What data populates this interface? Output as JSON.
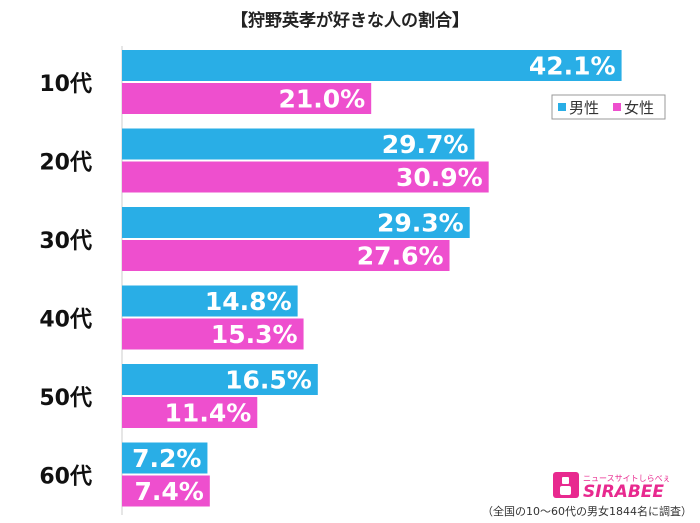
{
  "title": "【狩野英孝が好きな人の割合】",
  "footnote": "（全国の10〜60代の男女1844名に調査）",
  "logo": {
    "tagline": "ニュースサイトしらべぇ",
    "name": "SIRABEE"
  },
  "colors": {
    "male": "#29aee6",
    "female": "#ee4fce",
    "axis": "#cccccc",
    "label_text": "#ffffff"
  },
  "chart_data": {
    "type": "bar",
    "orientation": "horizontal",
    "categories": [
      "10代",
      "20代",
      "30代",
      "40代",
      "50代",
      "60代"
    ],
    "series": [
      {
        "name": "男性",
        "values": [
          42.1,
          29.7,
          29.3,
          14.8,
          16.5,
          7.2
        ]
      },
      {
        "name": "女性",
        "values": [
          21.0,
          30.9,
          27.6,
          15.3,
          11.4,
          7.4
        ]
      }
    ],
    "value_suffix": "%",
    "xlim": [
      0,
      45
    ],
    "grid": false,
    "legend_position": "top-right"
  }
}
